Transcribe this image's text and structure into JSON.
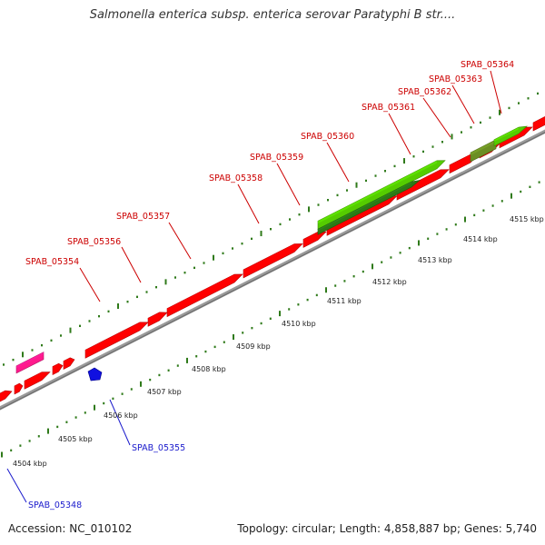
{
  "title": "Salmonella enterica subsp. enterica serovar Paratyphi B str....",
  "footer": {
    "accession": "Accession: NC_010102",
    "summary": "Topology: circular; Length: 4,858,887 bp; Genes: 5,740"
  },
  "colors": {
    "gene_red": "#ff0000",
    "gene_pink": "#ff1a8c",
    "gene_blue": "#1010e0",
    "gene_green": "#55cc00",
    "gene_dark_green": "#2b7a16",
    "gene_olive": "#6b8e23",
    "backbone": "#9a9a9a",
    "tick_green": "#2f7a1a",
    "label_red": "#cc0000",
    "label_blue": "#1a1acc"
  },
  "top_gene_labels": [
    "SPAB_05354",
    "SPAB_05356",
    "SPAB_05357",
    "SPAB_05358",
    "SPAB_05359",
    "SPAB_05360",
    "SPAB_05361",
    "SPAB_05362",
    "SPAB_05363",
    "SPAB_05364"
  ],
  "bottom_gene_labels": [
    "SPAB_05355",
    "SPAB_05348"
  ],
  "scale_labels": [
    "4504 kbp",
    "4505 kbp",
    "4506 kbp",
    "4507 kbp",
    "4508 kbp",
    "4509 kbp",
    "4510 kbp",
    "4511 kbp",
    "4512 kbp",
    "4513 kbp",
    "4514 kbp",
    "4515 kbp"
  ]
}
